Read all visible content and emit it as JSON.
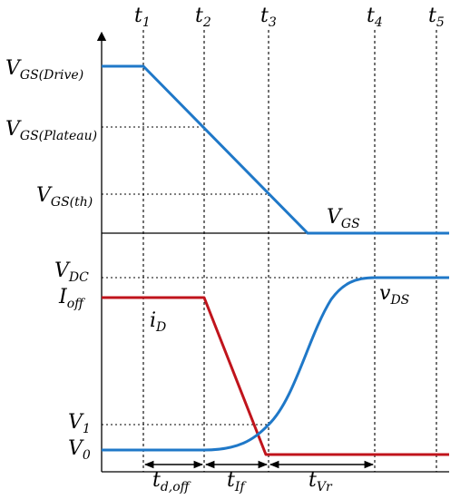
{
  "time_labels": [
    {
      "main": "t",
      "sub": "1"
    },
    {
      "main": "t",
      "sub": "2"
    },
    {
      "main": "t",
      "sub": "3"
    },
    {
      "main": "t",
      "sub": "4"
    },
    {
      "main": "t",
      "sub": "5"
    }
  ],
  "levels": {
    "vgs_drive": {
      "main": "V",
      "sub": "GS(Drive)"
    },
    "vgs_plateau": {
      "main": "V",
      "sub": "GS(Plateau)"
    },
    "vgs_th": {
      "main": "V",
      "sub": "GS(th)"
    },
    "vdc": {
      "main": "V",
      "sub": "DC"
    },
    "ioff": {
      "main": "I",
      "sub": "off"
    },
    "v1": {
      "main": "V",
      "sub": "1"
    },
    "v0": {
      "main": "V",
      "sub": "0"
    }
  },
  "curve_labels": {
    "vgs": {
      "main": "V",
      "sub": "GS"
    },
    "id": {
      "main": "i",
      "sub": "D"
    },
    "vds": {
      "main": "v",
      "sub": "DS"
    }
  },
  "intervals": [
    {
      "main": "t",
      "sub": "d,off"
    },
    {
      "main": "t",
      "sub": "If"
    },
    {
      "main": "t",
      "sub": "Vr"
    }
  ],
  "colors": {
    "vgs": "#1f78c8",
    "vds": "#1f78c8",
    "id": "#c0141c"
  }
}
